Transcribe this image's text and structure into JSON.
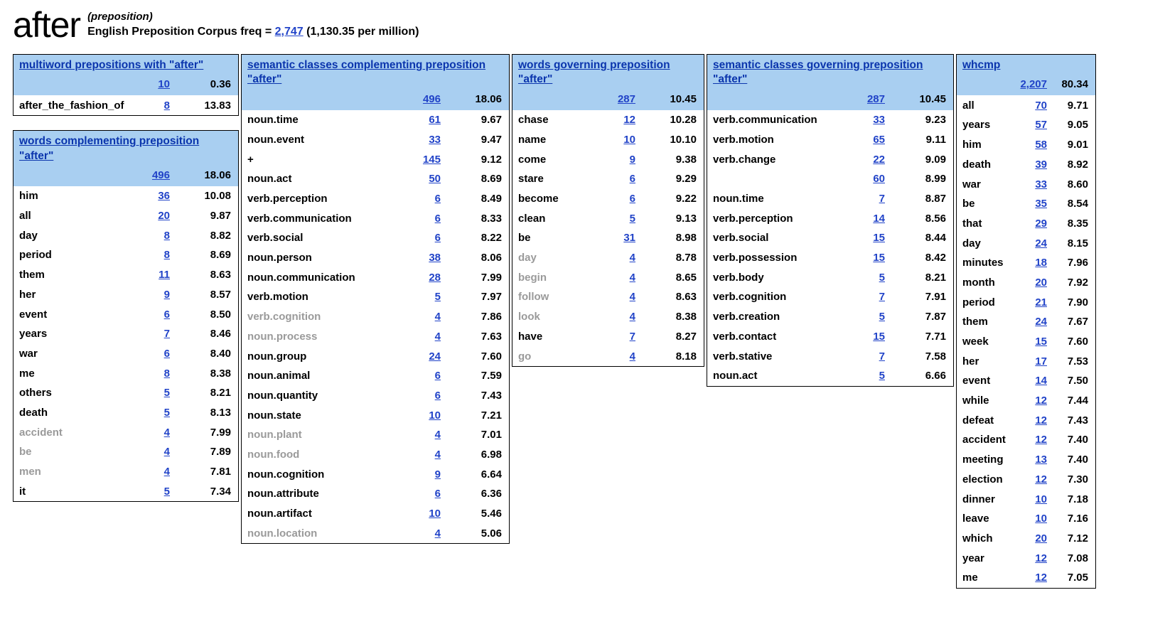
{
  "header": {
    "word": "after",
    "pos": "(preposition)",
    "freq_line": {
      "prefix": "English Preposition Corpus freq = ",
      "freq": "2,747",
      "suffix": " (1,130.35 per million)"
    }
  },
  "colors": {
    "header_band": "#a9cff1",
    "title_link": "#0b35ad",
    "number_link": "#2143c8",
    "grey_label": "#9a9a9a"
  },
  "tables": [
    {
      "title": "multiword prepositions with \"after\"",
      "total_freq": "10",
      "total_score": "0.36",
      "narrow": false,
      "rows": [
        {
          "label": "after_the_fashion_of",
          "freq": "8",
          "score": "13.83",
          "grey": false
        }
      ]
    },
    {
      "title": "words complementing preposition \"after\"",
      "total_freq": "496",
      "total_score": "18.06",
      "narrow": false,
      "rows": [
        {
          "label": "him",
          "freq": "36",
          "score": "10.08",
          "grey": false
        },
        {
          "label": "all",
          "freq": "20",
          "score": "9.87",
          "grey": false
        },
        {
          "label": "day",
          "freq": "8",
          "score": "8.82",
          "grey": false
        },
        {
          "label": "period",
          "freq": "8",
          "score": "8.69",
          "grey": false
        },
        {
          "label": "them",
          "freq": "11",
          "score": "8.63",
          "grey": false
        },
        {
          "label": "her",
          "freq": "9",
          "score": "8.57",
          "grey": false
        },
        {
          "label": "event",
          "freq": "6",
          "score": "8.50",
          "grey": false
        },
        {
          "label": "years",
          "freq": "7",
          "score": "8.46",
          "grey": false
        },
        {
          "label": "war",
          "freq": "6",
          "score": "8.40",
          "grey": false
        },
        {
          "label": "me",
          "freq": "8",
          "score": "8.38",
          "grey": false
        },
        {
          "label": "others",
          "freq": "5",
          "score": "8.21",
          "grey": false
        },
        {
          "label": "death",
          "freq": "5",
          "score": "8.13",
          "grey": false
        },
        {
          "label": "accident",
          "freq": "4",
          "score": "7.99",
          "grey": true
        },
        {
          "label": "be",
          "freq": "4",
          "score": "7.89",
          "grey": true
        },
        {
          "label": "men",
          "freq": "4",
          "score": "7.81",
          "grey": true
        },
        {
          "label": "it",
          "freq": "5",
          "score": "7.34",
          "grey": false
        }
      ]
    },
    {
      "title": "semantic classes complementing preposition \"after\"",
      "total_freq": "496",
      "total_score": "18.06",
      "narrow": false,
      "rows": [
        {
          "label": "noun.time",
          "freq": "61",
          "score": "9.67",
          "grey": false
        },
        {
          "label": "noun.event",
          "freq": "33",
          "score": "9.47",
          "grey": false
        },
        {
          "label": "+",
          "freq": "145",
          "score": "9.12",
          "grey": false
        },
        {
          "label": "noun.act",
          "freq": "50",
          "score": "8.69",
          "grey": false
        },
        {
          "label": "verb.perception",
          "freq": "6",
          "score": "8.49",
          "grey": false
        },
        {
          "label": "verb.communication",
          "freq": "6",
          "score": "8.33",
          "grey": false
        },
        {
          "label": "verb.social",
          "freq": "6",
          "score": "8.22",
          "grey": false
        },
        {
          "label": "noun.person",
          "freq": "38",
          "score": "8.06",
          "grey": false
        },
        {
          "label": "noun.communication",
          "freq": "28",
          "score": "7.99",
          "grey": false
        },
        {
          "label": "verb.motion",
          "freq": "5",
          "score": "7.97",
          "grey": false
        },
        {
          "label": "verb.cognition",
          "freq": "4",
          "score": "7.86",
          "grey": true
        },
        {
          "label": "noun.process",
          "freq": "4",
          "score": "7.63",
          "grey": true
        },
        {
          "label": "noun.group",
          "freq": "24",
          "score": "7.60",
          "grey": false
        },
        {
          "label": "noun.animal",
          "freq": "6",
          "score": "7.59",
          "grey": false
        },
        {
          "label": "noun.quantity",
          "freq": "6",
          "score": "7.43",
          "grey": false
        },
        {
          "label": "noun.state",
          "freq": "10",
          "score": "7.21",
          "grey": false
        },
        {
          "label": "noun.plant",
          "freq": "4",
          "score": "7.01",
          "grey": true
        },
        {
          "label": "noun.food",
          "freq": "4",
          "score": "6.98",
          "grey": true
        },
        {
          "label": "noun.cognition",
          "freq": "9",
          "score": "6.64",
          "grey": false
        },
        {
          "label": "noun.attribute",
          "freq": "6",
          "score": "6.36",
          "grey": false
        },
        {
          "label": "noun.artifact",
          "freq": "10",
          "score": "5.46",
          "grey": false
        },
        {
          "label": "noun.location",
          "freq": "4",
          "score": "5.06",
          "grey": true
        }
      ]
    },
    {
      "title": "words governing preposition \"after\"",
      "total_freq": "287",
      "total_score": "10.45",
      "narrow": false,
      "rows": [
        {
          "label": "chase",
          "freq": "12",
          "score": "10.28",
          "grey": false
        },
        {
          "label": "name",
          "freq": "10",
          "score": "10.10",
          "grey": false
        },
        {
          "label": "come",
          "freq": "9",
          "score": "9.38",
          "grey": false
        },
        {
          "label": "stare",
          "freq": "6",
          "score": "9.29",
          "grey": false
        },
        {
          "label": "become",
          "freq": "6",
          "score": "9.22",
          "grey": false
        },
        {
          "label": "clean",
          "freq": "5",
          "score": "9.13",
          "grey": false
        },
        {
          "label": "be",
          "freq": "31",
          "score": "8.98",
          "grey": false
        },
        {
          "label": "day",
          "freq": "4",
          "score": "8.78",
          "grey": true
        },
        {
          "label": "begin",
          "freq": "4",
          "score": "8.65",
          "grey": true
        },
        {
          "label": "follow",
          "freq": "4",
          "score": "8.63",
          "grey": true
        },
        {
          "label": "look",
          "freq": "4",
          "score": "8.38",
          "grey": true
        },
        {
          "label": "have",
          "freq": "7",
          "score": "8.27",
          "grey": false
        },
        {
          "label": "go",
          "freq": "4",
          "score": "8.18",
          "grey": true
        }
      ]
    },
    {
      "title": "semantic classes governing preposition \"after\"",
      "total_freq": "287",
      "total_score": "10.45",
      "narrow": false,
      "rows": [
        {
          "label": "verb.communication",
          "freq": "33",
          "score": "9.23",
          "grey": false
        },
        {
          "label": "verb.motion",
          "freq": "65",
          "score": "9.11",
          "grey": false
        },
        {
          "label": "verb.change",
          "freq": "22",
          "score": "9.09",
          "grey": false
        },
        {
          "label": "",
          "freq": "60",
          "score": "8.99",
          "grey": false
        },
        {
          "label": "noun.time",
          "freq": "7",
          "score": "8.87",
          "grey": false
        },
        {
          "label": "verb.perception",
          "freq": "14",
          "score": "8.56",
          "grey": false
        },
        {
          "label": "verb.social",
          "freq": "15",
          "score": "8.44",
          "grey": false
        },
        {
          "label": "verb.possession",
          "freq": "15",
          "score": "8.42",
          "grey": false
        },
        {
          "label": "verb.body",
          "freq": "5",
          "score": "8.21",
          "grey": false
        },
        {
          "label": "verb.cognition",
          "freq": "7",
          "score": "7.91",
          "grey": false
        },
        {
          "label": "verb.creation",
          "freq": "5",
          "score": "7.87",
          "grey": false
        },
        {
          "label": "verb.contact",
          "freq": "15",
          "score": "7.71",
          "grey": false
        },
        {
          "label": "verb.stative",
          "freq": "7",
          "score": "7.58",
          "grey": false
        },
        {
          "label": "noun.act",
          "freq": "5",
          "score": "6.66",
          "grey": false
        }
      ]
    },
    {
      "title": "whcmp",
      "total_freq": "2,207",
      "total_score": "80.34",
      "narrow": true,
      "rows": [
        {
          "label": "all",
          "freq": "70",
          "score": "9.71",
          "grey": false
        },
        {
          "label": "years",
          "freq": "57",
          "score": "9.05",
          "grey": false
        },
        {
          "label": "him",
          "freq": "58",
          "score": "9.01",
          "grey": false
        },
        {
          "label": "death",
          "freq": "39",
          "score": "8.92",
          "grey": false
        },
        {
          "label": "war",
          "freq": "33",
          "score": "8.60",
          "grey": false
        },
        {
          "label": "be",
          "freq": "35",
          "score": "8.54",
          "grey": false
        },
        {
          "label": "that",
          "freq": "29",
          "score": "8.35",
          "grey": false
        },
        {
          "label": "day",
          "freq": "24",
          "score": "8.15",
          "grey": false
        },
        {
          "label": "minutes",
          "freq": "18",
          "score": "7.96",
          "grey": false
        },
        {
          "label": "month",
          "freq": "20",
          "score": "7.92",
          "grey": false
        },
        {
          "label": "period",
          "freq": "21",
          "score": "7.90",
          "grey": false
        },
        {
          "label": "them",
          "freq": "24",
          "score": "7.67",
          "grey": false
        },
        {
          "label": "week",
          "freq": "15",
          "score": "7.60",
          "grey": false
        },
        {
          "label": "her",
          "freq": "17",
          "score": "7.53",
          "grey": false
        },
        {
          "label": "event",
          "freq": "14",
          "score": "7.50",
          "grey": false
        },
        {
          "label": "while",
          "freq": "12",
          "score": "7.44",
          "grey": false
        },
        {
          "label": "defeat",
          "freq": "12",
          "score": "7.43",
          "grey": false
        },
        {
          "label": "accident",
          "freq": "12",
          "score": "7.40",
          "grey": false
        },
        {
          "label": "meeting",
          "freq": "13",
          "score": "7.40",
          "grey": false
        },
        {
          "label": "election",
          "freq": "12",
          "score": "7.30",
          "grey": false
        },
        {
          "label": "dinner",
          "freq": "10",
          "score": "7.18",
          "grey": false
        },
        {
          "label": "leave",
          "freq": "10",
          "score": "7.16",
          "grey": false
        },
        {
          "label": "which",
          "freq": "20",
          "score": "7.12",
          "grey": false
        },
        {
          "label": "year",
          "freq": "12",
          "score": "7.08",
          "grey": false
        },
        {
          "label": "me",
          "freq": "12",
          "score": "7.05",
          "grey": false
        }
      ]
    }
  ]
}
